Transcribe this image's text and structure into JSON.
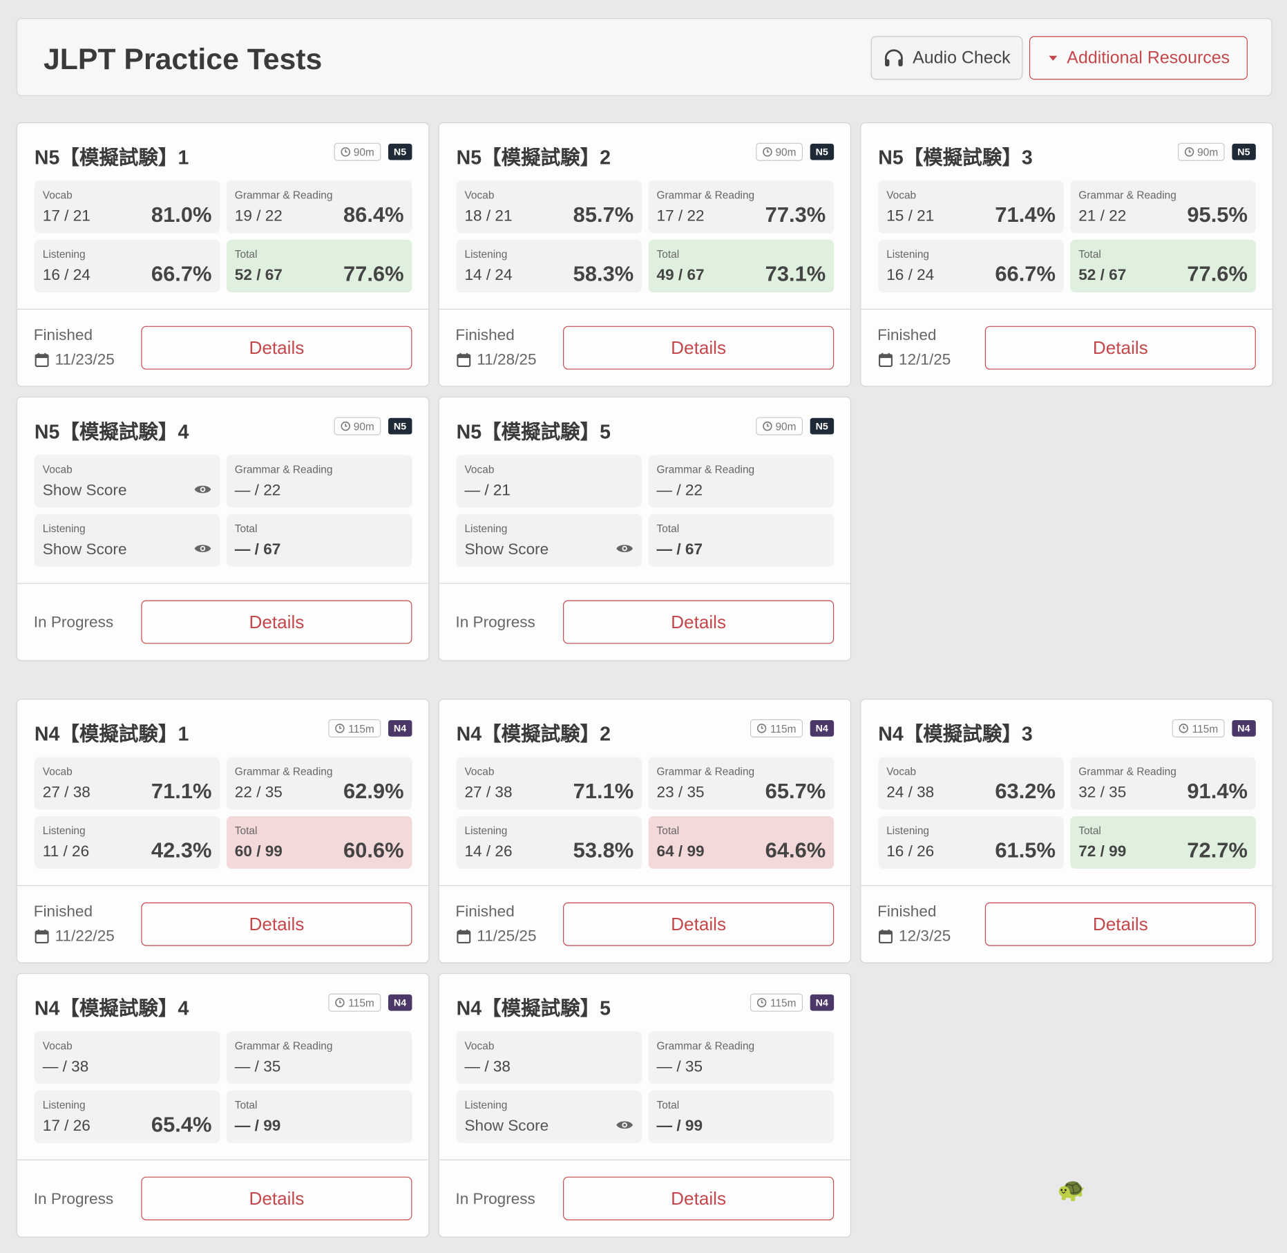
{
  "header": {
    "title": "JLPT Practice Tests",
    "audio_button": "Audio Check",
    "resources_button": "Additional Resources"
  },
  "groups": [
    {
      "tests": [
        {
          "title": "N5【模擬試験】1",
          "duration": "90m",
          "level": "N5",
          "badge_color": "#1e2a35",
          "sections": [
            {
              "label": "Vocab",
              "score": "17 / 21",
              "percent": "81.0%"
            },
            {
              "label": "Grammar & Reading",
              "score": "19 / 22",
              "percent": "86.4%"
            },
            {
              "label": "Listening",
              "score": "16 / 24",
              "percent": "66.7%"
            },
            {
              "label": "Total",
              "score": "52 / 67",
              "percent": "77.6%",
              "color": "#e0f0de"
            }
          ],
          "status": "Finished",
          "date": "11/23/25",
          "button": "Details"
        },
        {
          "title": "N5【模擬試験】2",
          "duration": "90m",
          "level": "N5",
          "badge_color": "#1e2a35",
          "sections": [
            {
              "label": "Vocab",
              "score": "18 / 21",
              "percent": "85.7%"
            },
            {
              "label": "Grammar & Reading",
              "score": "17 / 22",
              "percent": "77.3%"
            },
            {
              "label": "Listening",
              "score": "14 / 24",
              "percent": "58.3%"
            },
            {
              "label": "Total",
              "score": "49 / 67",
              "percent": "73.1%",
              "color": "#e0f0de"
            }
          ],
          "status": "Finished",
          "date": "11/28/25",
          "button": "Details"
        },
        {
          "title": "N5【模擬試験】3",
          "duration": "90m",
          "level": "N5",
          "badge_color": "#1e2a35",
          "sections": [
            {
              "label": "Vocab",
              "score": "15 / 21",
              "percent": "71.4%"
            },
            {
              "label": "Grammar & Reading",
              "score": "21 / 22",
              "percent": "95.5%"
            },
            {
              "label": "Listening",
              "score": "16 / 24",
              "percent": "66.7%"
            },
            {
              "label": "Total",
              "score": "52 / 67",
              "percent": "77.6%",
              "color": "#e0f0de"
            }
          ],
          "status": "Finished",
          "date": "12/1/25",
          "button": "Details"
        },
        {
          "title": "N5【模擬試験】4",
          "duration": "90m",
          "level": "N5",
          "badge_color": "#1e2a35",
          "sections": [
            {
              "label": "Vocab",
              "action": "Show Score"
            },
            {
              "label": "Grammar & Reading",
              "score": "— / 22"
            },
            {
              "label": "Listening",
              "action": "Show Score"
            },
            {
              "label": "Total",
              "score": "— / 67"
            }
          ],
          "status": "In Progress",
          "button": "Details"
        },
        {
          "title": "N5【模擬試験】5",
          "duration": "90m",
          "level": "N5",
          "badge_color": "#1e2a35",
          "sections": [
            {
              "label": "Vocab",
              "score": "— / 21"
            },
            {
              "label": "Grammar & Reading",
              "score": "— / 22"
            },
            {
              "label": "Listening",
              "action": "Show Score"
            },
            {
              "label": "Total",
              "score": "— / 67"
            }
          ],
          "status": "In Progress",
          "button": "Details"
        }
      ]
    },
    {
      "tests": [
        {
          "title": "N4【模擬試験】1",
          "duration": "115m",
          "level": "N4",
          "badge_color": "#4b3869",
          "sections": [
            {
              "label": "Vocab",
              "score": "27 / 38",
              "percent": "71.1%"
            },
            {
              "label": "Grammar & Reading",
              "score": "22 / 35",
              "percent": "62.9%"
            },
            {
              "label": "Listening",
              "score": "11 / 26",
              "percent": "42.3%"
            },
            {
              "label": "Total",
              "score": "60 / 99",
              "percent": "60.6%",
              "color": "#f4d9da"
            }
          ],
          "status": "Finished",
          "date": "11/22/25",
          "button": "Details"
        },
        {
          "title": "N4【模擬試験】2",
          "duration": "115m",
          "level": "N4",
          "badge_color": "#4b3869",
          "sections": [
            {
              "label": "Vocab",
              "score": "27 / 38",
              "percent": "71.1%"
            },
            {
              "label": "Grammar & Reading",
              "score": "23 / 35",
              "percent": "65.7%"
            },
            {
              "label": "Listening",
              "score": "14 / 26",
              "percent": "53.8%"
            },
            {
              "label": "Total",
              "score": "64 / 99",
              "percent": "64.6%",
              "color": "#f4d9da"
            }
          ],
          "status": "Finished",
          "date": "11/25/25",
          "button": "Details"
        },
        {
          "title": "N4【模擬試験】3",
          "duration": "115m",
          "level": "N4",
          "badge_color": "#4b3869",
          "sections": [
            {
              "label": "Vocab",
              "score": "24 / 38",
              "percent": "63.2%"
            },
            {
              "label": "Grammar & Reading",
              "score": "32 / 35",
              "percent": "91.4%"
            },
            {
              "label": "Listening",
              "score": "16 / 26",
              "percent": "61.5%"
            },
            {
              "label": "Total",
              "score": "72 / 99",
              "percent": "72.7%",
              "color": "#e0f0de"
            }
          ],
          "status": "Finished",
          "date": "12/3/25",
          "button": "Details"
        },
        {
          "title": "N4【模擬試験】4",
          "duration": "115m",
          "level": "N4",
          "badge_color": "#4b3869",
          "sections": [
            {
              "label": "Vocab",
              "score": "— / 38"
            },
            {
              "label": "Grammar & Reading",
              "score": "— / 35"
            },
            {
              "label": "Listening",
              "score": "17 / 26",
              "percent": "65.4%"
            },
            {
              "label": "Total",
              "score": "— / 99"
            }
          ],
          "status": "In Progress",
          "button": "Details"
        },
        {
          "title": "N4【模擬試験】5",
          "duration": "115m",
          "level": "N4",
          "badge_color": "#4b3869",
          "sections": [
            {
              "label": "Vocab",
              "score": "— / 38"
            },
            {
              "label": "Grammar & Reading",
              "score": "— / 35"
            },
            {
              "label": "Listening",
              "action": "Show Score"
            },
            {
              "label": "Total",
              "score": "— / 99"
            }
          ],
          "status": "In Progress",
          "button": "Details"
        }
      ]
    }
  ],
  "mascot": "🐢"
}
